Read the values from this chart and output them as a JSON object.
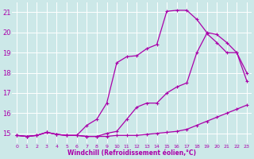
{
  "xlabel": "Windchill (Refroidissement éolien,°C)",
  "x_ticks": [
    0,
    1,
    2,
    3,
    4,
    5,
    6,
    7,
    8,
    9,
    10,
    11,
    12,
    13,
    14,
    15,
    16,
    17,
    18,
    19,
    20,
    21,
    22,
    23
  ],
  "ylim": [
    14.5,
    21.5
  ],
  "xlim": [
    -0.5,
    23.5
  ],
  "y_ticks": [
    15,
    16,
    17,
    18,
    19,
    20,
    21
  ],
  "bg_color": "#cce8e8",
  "grid_color": "#ffffff",
  "line_color": "#aa00aa",
  "line1_x": [
    0,
    1,
    2,
    3,
    4,
    5,
    6,
    7,
    8,
    9,
    10,
    11,
    12,
    13,
    14,
    15,
    16,
    17,
    18,
    19,
    20,
    21,
    22,
    23
  ],
  "line1_y": [
    14.9,
    14.85,
    14.9,
    15.05,
    14.95,
    14.9,
    14.9,
    14.85,
    14.85,
    14.85,
    14.9,
    14.9,
    14.9,
    14.95,
    15.0,
    15.05,
    15.1,
    15.2,
    15.4,
    15.6,
    15.8,
    16.0,
    16.2,
    16.4
  ],
  "line2_x": [
    0,
    1,
    2,
    3,
    4,
    5,
    6,
    7,
    8,
    9,
    10,
    11,
    12,
    13,
    14,
    15,
    16,
    17,
    18,
    19,
    20,
    21,
    22,
    23
  ],
  "line2_y": [
    14.9,
    14.85,
    14.9,
    15.05,
    14.95,
    14.9,
    14.9,
    14.85,
    14.85,
    15.0,
    15.1,
    15.7,
    16.3,
    16.5,
    16.5,
    17.0,
    17.3,
    17.5,
    19.0,
    19.95,
    19.5,
    19.0,
    19.0,
    17.6
  ],
  "line3_x": [
    0,
    1,
    2,
    3,
    4,
    5,
    6,
    7,
    8,
    9,
    10,
    11,
    12,
    13,
    14,
    15,
    16,
    17,
    18,
    19,
    20,
    21,
    22,
    23
  ],
  "line3_y": [
    14.9,
    14.85,
    14.9,
    15.05,
    14.95,
    14.9,
    14.9,
    15.4,
    15.7,
    16.5,
    18.5,
    18.8,
    18.85,
    19.2,
    19.4,
    21.05,
    21.1,
    21.1,
    20.65,
    20.0,
    19.9,
    19.5,
    19.0,
    18.0
  ]
}
